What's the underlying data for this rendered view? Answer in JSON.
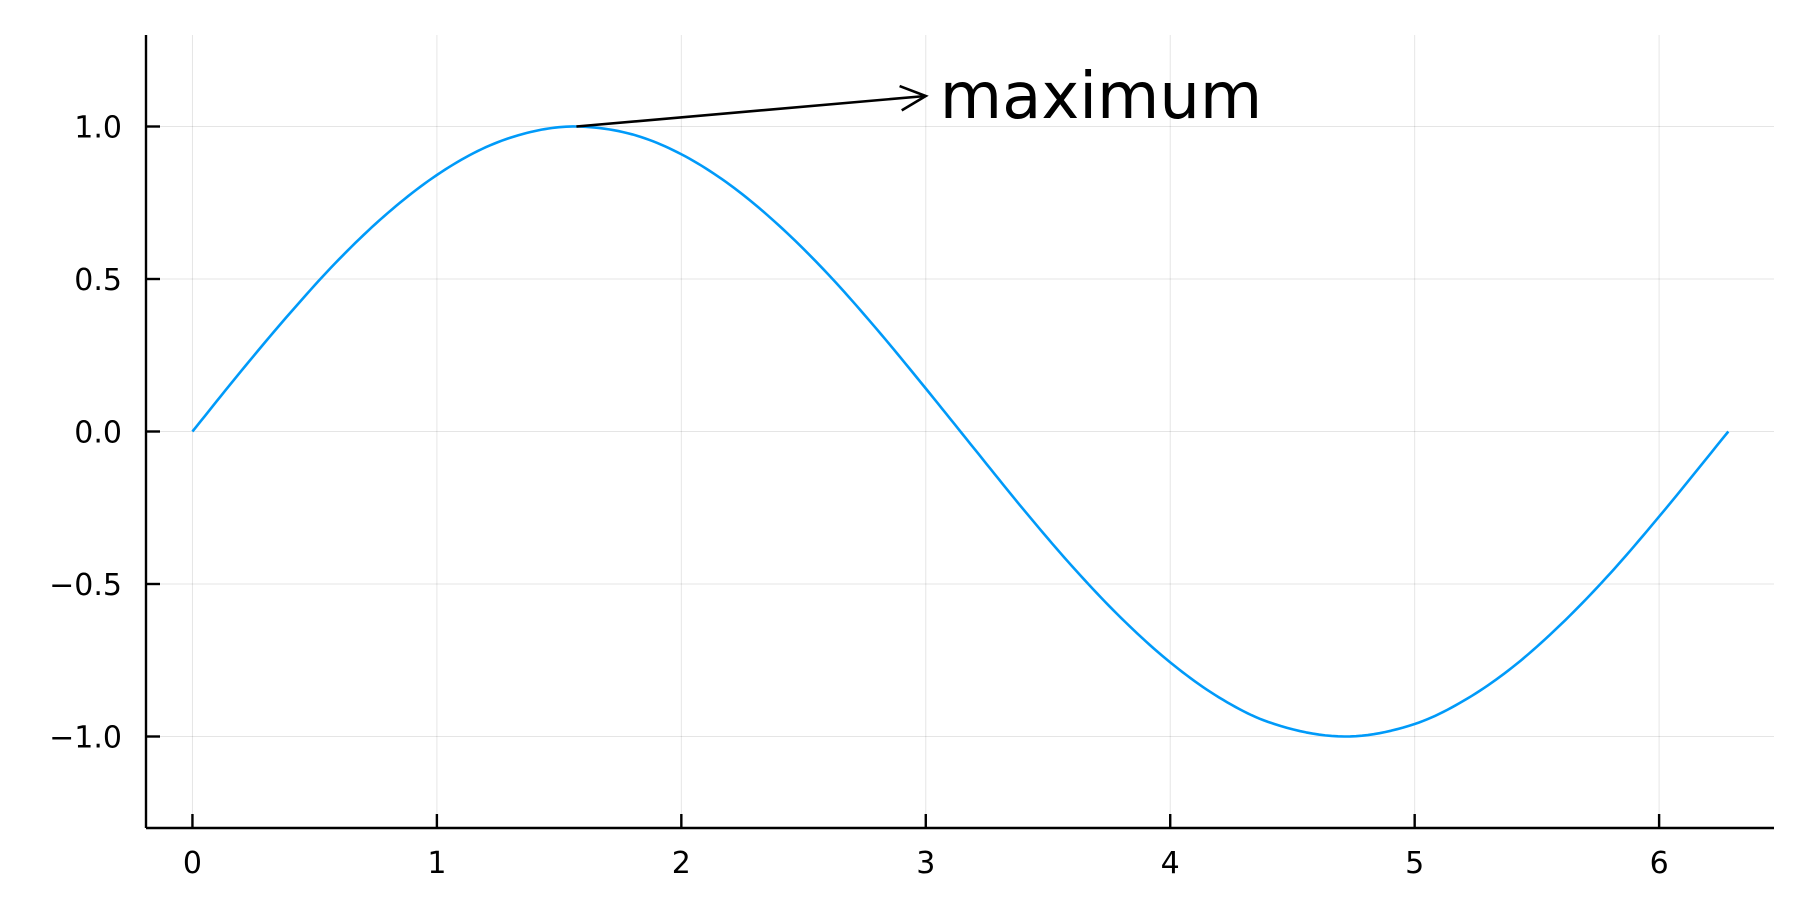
{
  "chart_data": {
    "type": "line",
    "title": "",
    "xlabel": "",
    "ylabel": "",
    "xlim": [
      -0.19,
      6.47
    ],
    "ylim": [
      -1.3,
      1.3
    ],
    "grid": true,
    "legend": "none",
    "x_ticks": [
      {
        "value": 0,
        "label": "0"
      },
      {
        "value": 1,
        "label": "1"
      },
      {
        "value": 2,
        "label": "2"
      },
      {
        "value": 3,
        "label": "3"
      },
      {
        "value": 4,
        "label": "4"
      },
      {
        "value": 5,
        "label": "5"
      },
      {
        "value": 6,
        "label": "6"
      }
    ],
    "y_ticks": [
      {
        "value": -1.0,
        "label": "−1.0"
      },
      {
        "value": -0.5,
        "label": "−0.5"
      },
      {
        "value": 0.0,
        "label": "0.0"
      },
      {
        "value": 0.5,
        "label": "0.5"
      },
      {
        "value": 1.0,
        "label": "1.0"
      }
    ],
    "series": [
      {
        "color": "#009af9",
        "x": [
          0,
          0.2,
          0.4,
          0.6,
          0.8,
          1.0,
          1.2,
          1.4,
          1.5708,
          1.8,
          2.0,
          2.2,
          2.4,
          2.6,
          2.8,
          3.0,
          3.2,
          3.4,
          3.6,
          3.8,
          4.0,
          4.2,
          4.4,
          4.7124,
          5.0,
          5.2,
          5.4,
          5.6,
          5.8,
          6.0,
          6.2832
        ],
        "y": [
          0,
          0.199,
          0.389,
          0.565,
          0.717,
          0.841,
          0.932,
          0.985,
          1.0,
          0.974,
          0.909,
          0.808,
          0.675,
          0.516,
          0.335,
          0.141,
          -0.058,
          -0.256,
          -0.443,
          -0.612,
          -0.757,
          -0.872,
          -0.952,
          -1.0,
          -0.959,
          -0.883,
          -0.773,
          -0.631,
          -0.465,
          -0.279,
          0.0
        ]
      }
    ],
    "annotations": [
      {
        "text": "maximum",
        "point": [
          1.5708,
          1.0
        ],
        "text_at": [
          3.0,
          1.1
        ],
        "color": "#000000"
      }
    ]
  }
}
